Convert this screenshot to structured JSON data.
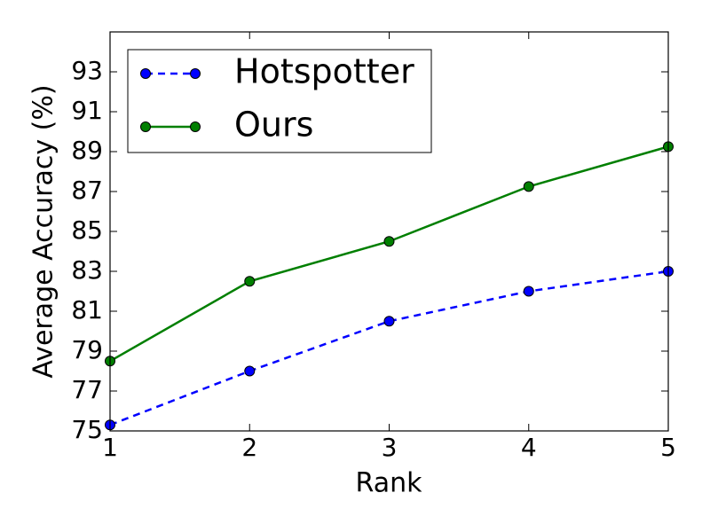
{
  "chart_data": {
    "type": "line",
    "xlabel": "Rank",
    "ylabel": "Average Accuracy (%)",
    "x": [
      1,
      2,
      3,
      4,
      5
    ],
    "xlim": [
      1,
      5
    ],
    "xticks": [
      1,
      2,
      3,
      4,
      5
    ],
    "ylim": [
      75,
      95
    ],
    "yticks": [
      75,
      77,
      79,
      81,
      83,
      85,
      87,
      89,
      91,
      93
    ],
    "legend": "upper left",
    "series": [
      {
        "name": "Hotspotter",
        "color": "#0000ff",
        "linestyle": "dashed",
        "values": [
          75.3,
          78.0,
          80.5,
          82.0,
          83.0
        ]
      },
      {
        "name": "Ours",
        "color": "#007f00",
        "linestyle": "solid",
        "values": [
          78.5,
          82.5,
          84.5,
          87.25,
          89.25
        ]
      }
    ]
  }
}
